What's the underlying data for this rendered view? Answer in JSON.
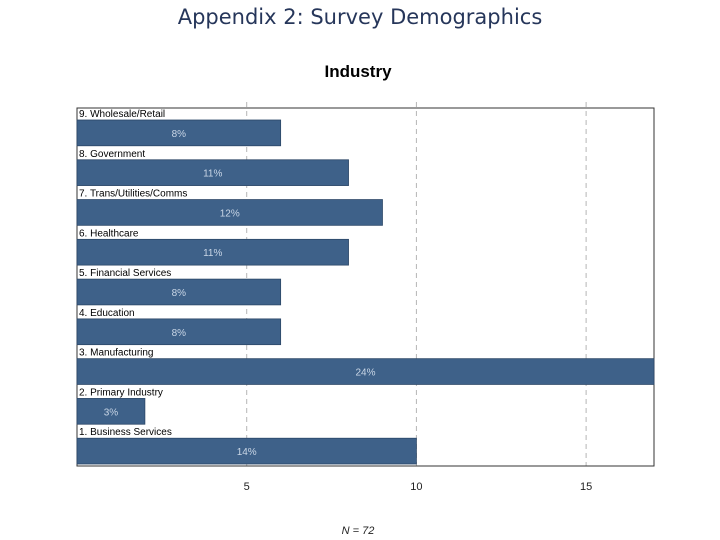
{
  "slide": {
    "title": "Appendix 2: Survey Demographics"
  },
  "chart_data": {
    "type": "bar",
    "orientation": "horizontal",
    "title": "Industry",
    "footnote": "N = 72",
    "categories": [
      "1. Business Services",
      "2. Primary Industry",
      "3. Manufacturing",
      "4. Education",
      "5. Financial Services",
      "6. Healthcare",
      "7. Trans/Utilities/Comms",
      "8. Government",
      "9. Wholesale/Retail"
    ],
    "values": [
      10,
      2,
      17,
      6,
      6,
      8,
      9,
      8,
      6
    ],
    "labels": [
      "14%",
      "3%",
      "24%",
      "8%",
      "8%",
      "11%",
      "12%",
      "11%",
      "8%"
    ],
    "xlim": [
      0,
      17
    ],
    "xticks": [
      5,
      10,
      15
    ],
    "grid": true,
    "bar_color": "#3e6189"
  }
}
